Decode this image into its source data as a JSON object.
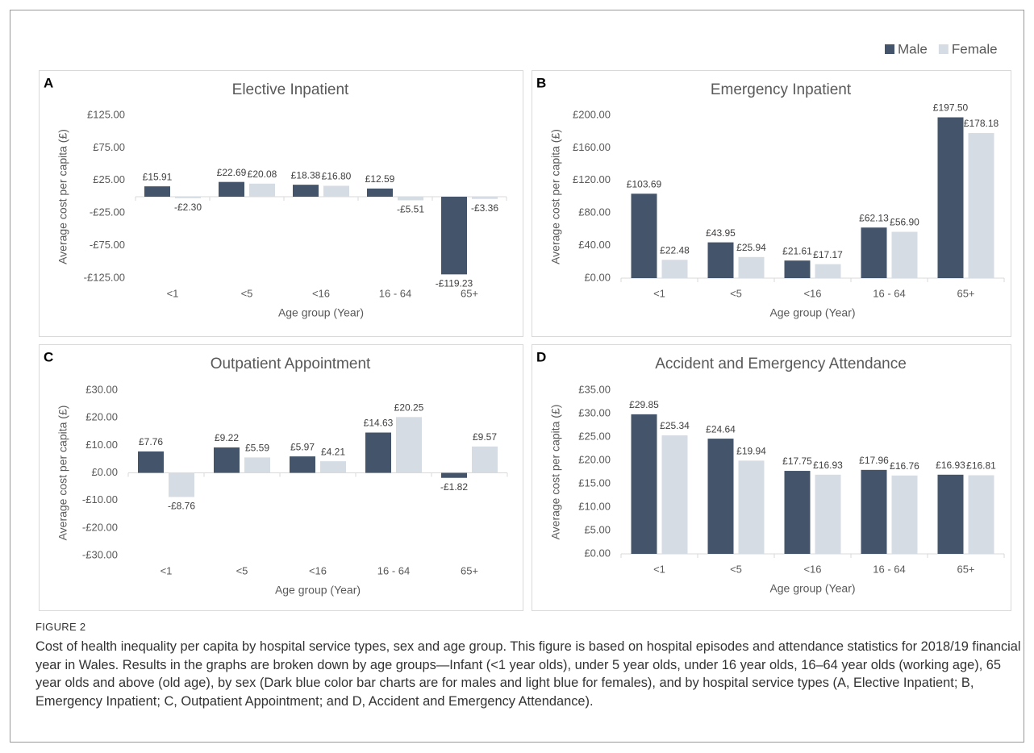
{
  "legend_position": "top-right",
  "chart_data": [
    {
      "type": "bar",
      "panel": "A",
      "title": "Elective Inpatient",
      "x_label": "Age group (Year)",
      "y_label": "Average cost per capita (£)",
      "categories": [
        "<1",
        "<5",
        "<16",
        "16 - 64",
        "65+"
      ],
      "series": [
        {
          "name": "Male",
          "color": "#44546a",
          "values": [
            15.91,
            22.69,
            18.38,
            12.59,
            -119.23
          ],
          "value_labels": [
            "£15.91",
            "£22.69",
            "£18.38",
            "£12.59",
            "-£119.23"
          ]
        },
        {
          "name": "Female",
          "color": "#d6dce4",
          "values": [
            -2.3,
            20.08,
            16.8,
            -5.51,
            -3.36
          ],
          "value_labels": [
            "-£2.30",
            "£20.08",
            "£16.80",
            "-£5.51",
            "-£3.36"
          ]
        }
      ],
      "ylim": [
        -125,
        125
      ],
      "yticks": [
        {
          "value": -125,
          "label": "-£125.00"
        },
        {
          "value": -75,
          "label": "-£75.00"
        },
        {
          "value": -25,
          "label": "-£25.00"
        },
        {
          "value": 25,
          "label": "£25.00"
        },
        {
          "value": 75,
          "label": "£75.00"
        },
        {
          "value": 125,
          "label": "£125.00"
        }
      ],
      "grid": false
    },
    {
      "type": "bar",
      "panel": "B",
      "title": "Emergency Inpatient",
      "x_label": "Age group (Year)",
      "y_label": "Average cost per capita (£)",
      "categories": [
        "<1",
        "<5",
        "<16",
        "16 - 64",
        "65+"
      ],
      "series": [
        {
          "name": "Male",
          "color": "#44546a",
          "values": [
            103.69,
            43.95,
            21.61,
            62.13,
            197.5
          ],
          "value_labels": [
            "£103.69",
            "£43.95",
            "£21.61",
            "£62.13",
            "£197.50"
          ]
        },
        {
          "name": "Female",
          "color": "#d6dce4",
          "values": [
            22.48,
            25.94,
            17.17,
            56.9,
            178.18
          ],
          "value_labels": [
            "£22.48",
            "£25.94",
            "£17.17",
            "£56.90",
            "£178.18"
          ]
        }
      ],
      "ylim": [
        0,
        200
      ],
      "yticks": [
        {
          "value": 0,
          "label": "£0.00"
        },
        {
          "value": 40,
          "label": "£40.00"
        },
        {
          "value": 80,
          "label": "£80.00"
        },
        {
          "value": 120,
          "label": "£120.00"
        },
        {
          "value": 160,
          "label": "£160.00"
        },
        {
          "value": 200,
          "label": "£200.00"
        }
      ],
      "grid": false
    },
    {
      "type": "bar",
      "panel": "C",
      "title": "Outpatient Appointment",
      "x_label": "Age group (Year)",
      "y_label": "Average cost per capita (£)",
      "categories": [
        "<1",
        "<5",
        "<16",
        "16 - 64",
        "65+"
      ],
      "series": [
        {
          "name": "Male",
          "color": "#44546a",
          "values": [
            7.76,
            9.22,
            5.97,
            14.63,
            -1.82
          ],
          "value_labels": [
            "£7.76",
            "£9.22",
            "£5.97",
            "£14.63",
            "-£1.82"
          ]
        },
        {
          "name": "Female",
          "color": "#d6dce4",
          "values": [
            -8.76,
            5.59,
            4.21,
            20.25,
            9.57
          ],
          "value_labels": [
            "-£8.76",
            "£5.59",
            "£4.21",
            "£20.25",
            "£9.57"
          ]
        }
      ],
      "ylim": [
        -30,
        30
      ],
      "yticks": [
        {
          "value": -30,
          "label": "-£30.00"
        },
        {
          "value": -20,
          "label": "-£20.00"
        },
        {
          "value": -10,
          "label": "-£10.00"
        },
        {
          "value": 0,
          "label": "£0.00"
        },
        {
          "value": 10,
          "label": "£10.00"
        },
        {
          "value": 20,
          "label": "£20.00"
        },
        {
          "value": 30,
          "label": "£30.00"
        }
      ],
      "grid": false
    },
    {
      "type": "bar",
      "panel": "D",
      "title": "Accident and Emergency Attendance",
      "x_label": "Age group (Year)",
      "y_label": "Average cost per capita (£)",
      "categories": [
        "<1",
        "<5",
        "<16",
        "16 - 64",
        "65+"
      ],
      "series": [
        {
          "name": "Male",
          "color": "#44546a",
          "values": [
            29.85,
            24.64,
            17.75,
            17.96,
            16.93
          ],
          "value_labels": [
            "£29.85",
            "£24.64",
            "£17.75",
            "£17.96",
            "£16.93"
          ]
        },
        {
          "name": "Female",
          "color": "#d6dce4",
          "values": [
            25.34,
            19.94,
            16.93,
            16.76,
            16.81
          ],
          "value_labels": [
            "£25.34",
            "£19.94",
            "£16.93",
            "£16.76",
            "£16.81"
          ]
        }
      ],
      "ylim": [
        0,
        35
      ],
      "yticks": [
        {
          "value": 0,
          "label": "£0.00"
        },
        {
          "value": 5,
          "label": "£5.00"
        },
        {
          "value": 10,
          "label": "£10.00"
        },
        {
          "value": 15,
          "label": "£15.00"
        },
        {
          "value": 20,
          "label": "£20.00"
        },
        {
          "value": 25,
          "label": "£25.00"
        },
        {
          "value": 30,
          "label": "£30.00"
        },
        {
          "value": 35,
          "label": "£35.00"
        }
      ],
      "grid": false
    }
  ],
  "caption": {
    "label": "FIGURE 2",
    "text": "Cost of health inequality per capita by hospital service types, sex and age group. This figure is based on hospital episodes and attendance statistics for 2018/19 financial year in Wales. Results in the graphs are broken down by age groups—Infant (<1 year olds), under 5 year olds, under 16 year olds, 16–64 year olds (working age), 65 year olds and above (old age), by sex (Dark blue color bar charts are for males and light blue for females), and by hospital service types (A, Elective Inpatient; B, Emergency Inpatient; C, Outpatient Appointment; and D, Accident and Emergency Attendance)."
  }
}
